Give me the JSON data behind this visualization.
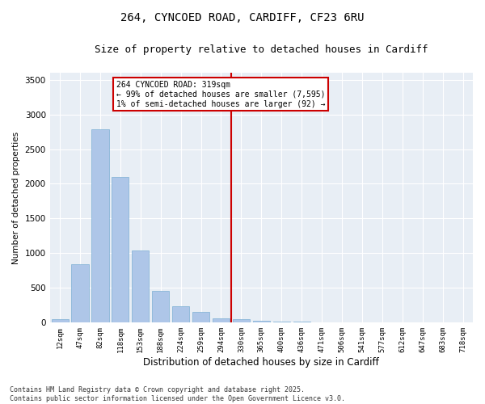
{
  "title1": "264, CYNCOED ROAD, CARDIFF, CF23 6RU",
  "title2": "Size of property relative to detached houses in Cardiff",
  "xlabel": "Distribution of detached houses by size in Cardiff",
  "ylabel": "Number of detached properties",
  "categories": [
    "12sqm",
    "47sqm",
    "82sqm",
    "118sqm",
    "153sqm",
    "188sqm",
    "224sqm",
    "259sqm",
    "294sqm",
    "330sqm",
    "365sqm",
    "400sqm",
    "436sqm",
    "471sqm",
    "506sqm",
    "541sqm",
    "577sqm",
    "612sqm",
    "647sqm",
    "683sqm",
    "718sqm"
  ],
  "values": [
    50,
    840,
    2780,
    2100,
    1040,
    460,
    235,
    150,
    65,
    50,
    30,
    20,
    10,
    8,
    5,
    3,
    2,
    2,
    1,
    1,
    1
  ],
  "bar_color": "#aec6e8",
  "bar_edgecolor": "#7bafd4",
  "vline_x": 9,
  "vline_color": "#cc0000",
  "annotation_title": "264 CYNCOED ROAD: 319sqm",
  "annotation_line1": "← 99% of detached houses are smaller (7,595)",
  "annotation_line2": "1% of semi-detached houses are larger (92) →",
  "annotation_box_color": "#cc0000",
  "ylim": [
    0,
    3600
  ],
  "yticks": [
    0,
    500,
    1000,
    1500,
    2000,
    2500,
    3000,
    3500
  ],
  "footer1": "Contains HM Land Registry data © Crown copyright and database right 2025.",
  "footer2": "Contains public sector information licensed under the Open Government Licence v3.0.",
  "bg_color": "#e8eef5",
  "fig_bg": "#ffffff",
  "title_fontsize": 10,
  "subtitle_fontsize": 9
}
